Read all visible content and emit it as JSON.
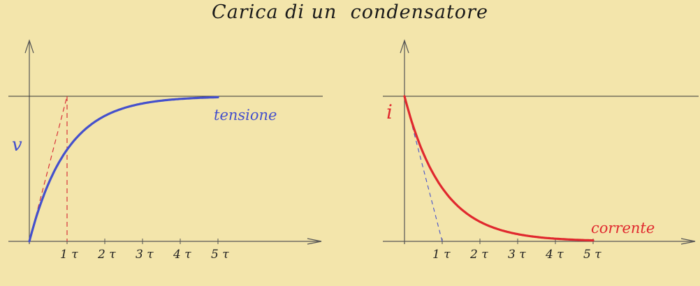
{
  "title": "Carica di un  condensatore",
  "colors": {
    "background": "#f3e5ab",
    "voltage": "#4450cc",
    "current": "#e0282e",
    "tangent": "#d8323a",
    "axis": "#555555"
  },
  "chart_data": [
    {
      "type": "line",
      "ylabel": "v",
      "x_tick_labels": [
        "1 τ",
        "2 τ",
        "3 τ",
        "4 τ",
        "5 τ"
      ],
      "series": [
        {
          "name": "tensione",
          "x": [
            0,
            0.25,
            0.5,
            0.75,
            1,
            1.5,
            2,
            2.5,
            3,
            3.5,
            4,
            4.5,
            5
          ],
          "values": [
            0,
            0.221,
            0.393,
            0.528,
            0.632,
            0.777,
            0.865,
            0.918,
            0.95,
            0.97,
            0.982,
            0.989,
            0.993
          ]
        }
      ],
      "tangent": {
        "x": [
          0,
          1
        ],
        "values": [
          0,
          1
        ]
      },
      "asymptote": 1,
      "xlim": [
        0,
        7.4
      ],
      "ylim": [
        0,
        1
      ]
    },
    {
      "type": "line",
      "ylabel": "i",
      "x_tick_labels": [
        "1 τ",
        "2 τ",
        "3 τ",
        "4 τ",
        "5 τ"
      ],
      "series": [
        {
          "name": "corrente",
          "x": [
            0,
            0.25,
            0.5,
            0.75,
            1,
            1.5,
            2,
            2.5,
            3,
            3.5,
            4,
            4.5,
            5
          ],
          "values": [
            1,
            0.779,
            0.607,
            0.472,
            0.368,
            0.223,
            0.135,
            0.082,
            0.05,
            0.03,
            0.018,
            0.011,
            0.007
          ]
        }
      ],
      "tangent": {
        "x": [
          0,
          1
        ],
        "values": [
          1,
          0
        ]
      },
      "xlim": [
        0,
        7.3
      ],
      "ylim": [
        0,
        1
      ]
    }
  ]
}
